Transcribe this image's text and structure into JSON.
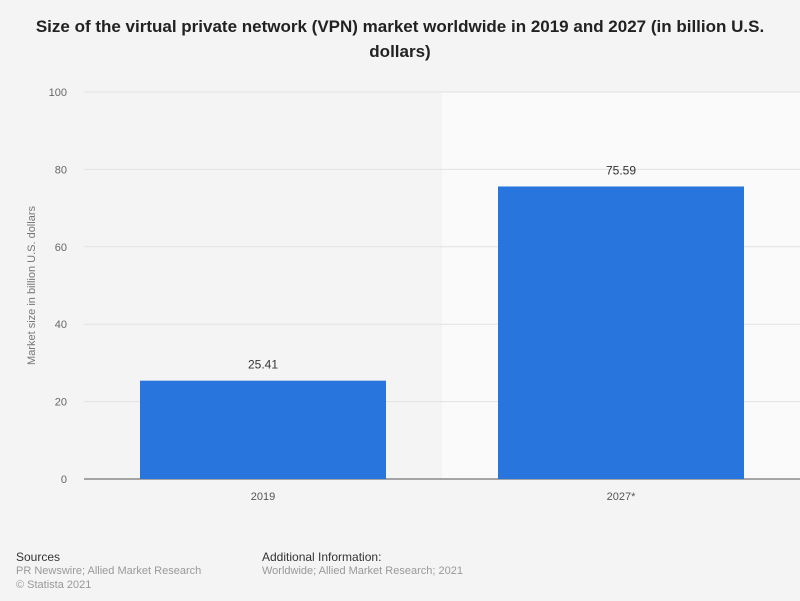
{
  "chart_data": {
    "type": "bar",
    "title": "Size of the virtual private network (VPN) market worldwide in 2019 and 2027 (in billion U.S. dollars)",
    "xlabel": "",
    "ylabel": "Market size in billion U.S. dollars",
    "categories": [
      "2019",
      "2027*"
    ],
    "values": [
      25.41,
      75.59
    ],
    "data_labels": [
      "25.41",
      "75.59"
    ],
    "ylim": [
      0,
      100
    ],
    "yticks": [
      "0",
      "20",
      "40",
      "60",
      "80",
      "100"
    ],
    "grid": true,
    "bar_color": "#2876dd",
    "projection_shading": "2027*"
  },
  "footer": {
    "sources_label": "Sources",
    "sources_value": "PR Newswire; Allied Market Research",
    "copyright": "© Statista 2021",
    "additional_label": "Additional Information:",
    "additional_value": "Worldwide; Allied Market Research; 2021"
  }
}
